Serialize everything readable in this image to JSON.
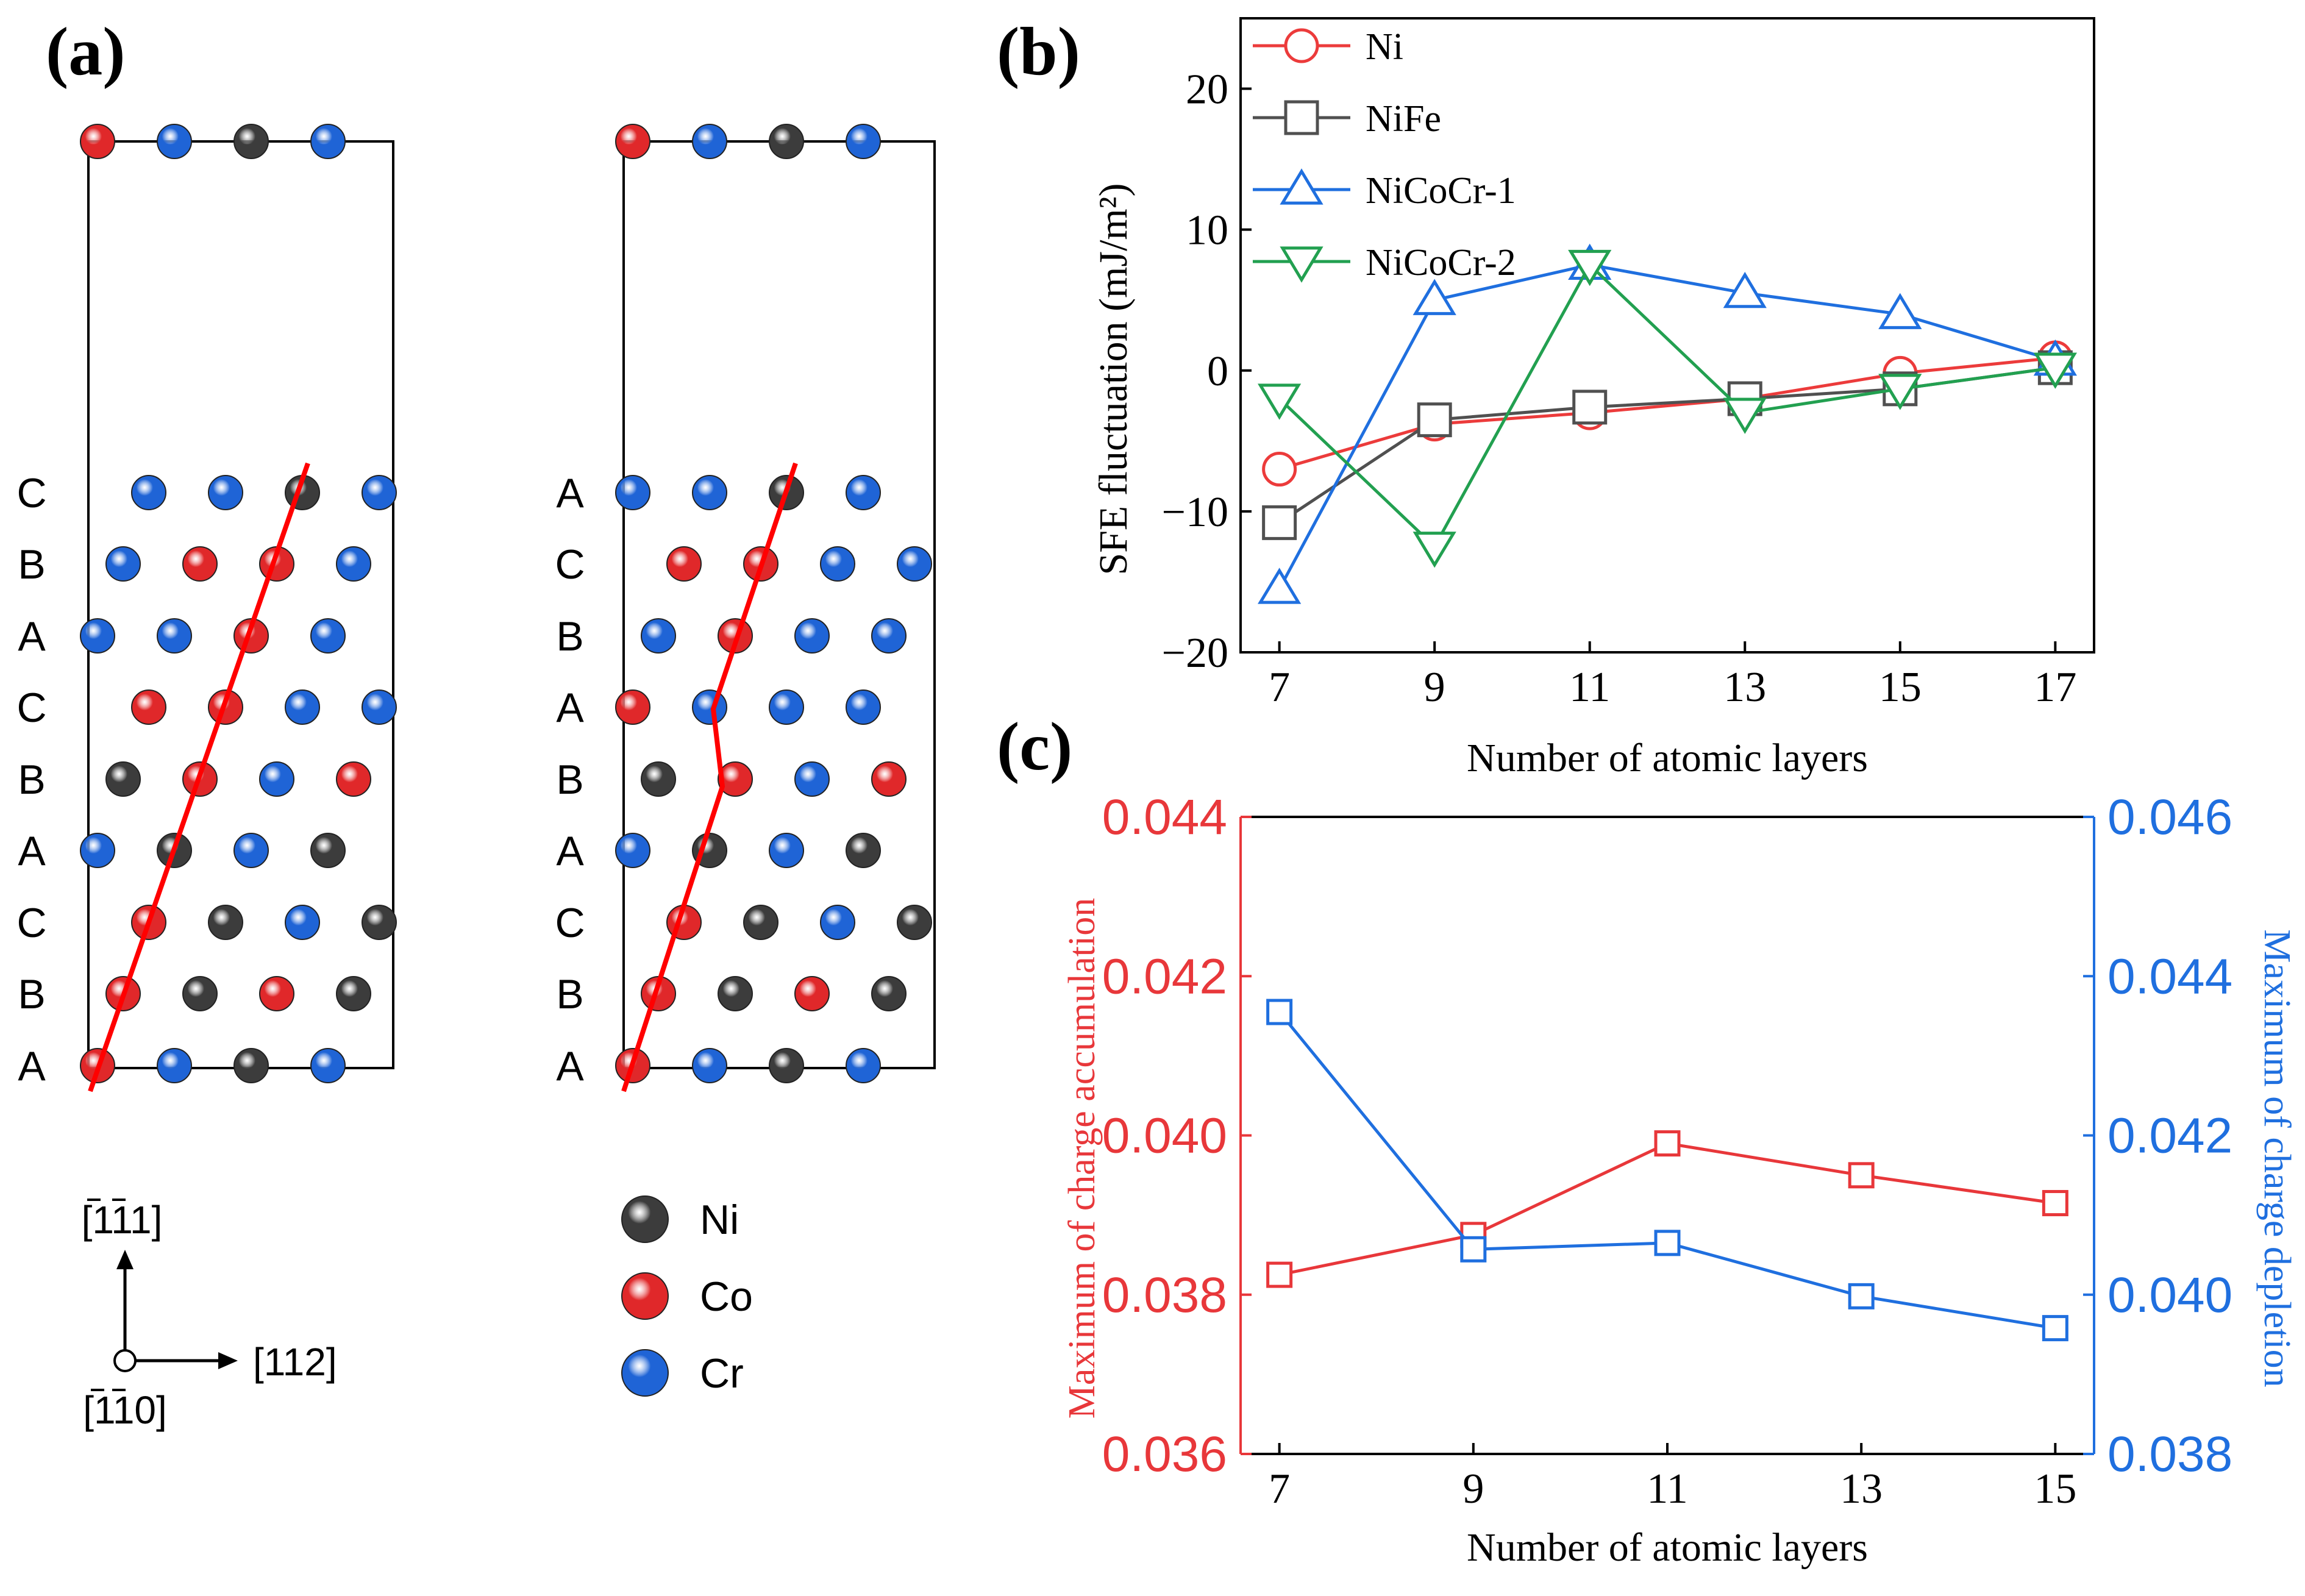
{
  "colors": {
    "Ni": "#3c3c3c",
    "Co": "#e0282a",
    "Cr": "#1f64d6",
    "red_line": "#ff0000",
    "series_Ni": "#ec3b3b",
    "series_NiFe": "#505050",
    "series_NiCoCr1": "#1f6fdf",
    "series_NiCoCr2": "#22a050",
    "axis_left_c": "#e8373a",
    "axis_right_c": "#1f6fdf"
  },
  "panel_a": {
    "label": "(a)",
    "left_layers": [
      "C",
      "B",
      "A",
      "C",
      "B",
      "A",
      "C",
      "B",
      "A"
    ],
    "right_layers": [
      "A",
      "C",
      "B",
      "A",
      "B",
      "A",
      "C",
      "B",
      "A"
    ],
    "left_top_row": [
      "Co",
      "Cr",
      "Ni",
      "Cr"
    ],
    "right_top_row": [
      "Co",
      "Cr",
      "Ni",
      "Cr"
    ],
    "left_rows": [
      [
        "Cr",
        "Cr",
        "Ni",
        "Cr"
      ],
      [
        "Cr",
        "Co",
        "Co",
        "Cr"
      ],
      [
        "Cr",
        "Cr",
        "Co",
        "Cr"
      ],
      [
        "Co",
        "Co",
        "Cr",
        "Cr"
      ],
      [
        "Ni",
        "Co",
        "Cr",
        "Co"
      ],
      [
        "Cr",
        "Ni",
        "Cr",
        "Ni"
      ],
      [
        "Co",
        "Ni",
        "Cr",
        "Ni"
      ],
      [
        "Co",
        "Ni",
        "Co",
        "Ni"
      ],
      [
        "Co",
        "Cr",
        "Ni",
        "Cr"
      ]
    ],
    "right_rows": [
      [
        "Cr",
        "Cr",
        "Ni",
        "Cr"
      ],
      [
        "Co",
        "Co",
        "Cr",
        "Cr"
      ],
      [
        "Cr",
        "Co",
        "Cr",
        "Cr"
      ],
      [
        "Co",
        "Cr",
        "Cr",
        "Cr"
      ],
      [
        "Ni",
        "Co",
        "Cr",
        "Co"
      ],
      [
        "Cr",
        "Ni",
        "Cr",
        "Ni"
      ],
      [
        "Co",
        "Ni",
        "Cr",
        "Ni"
      ],
      [
        "Co",
        "Ni",
        "Co",
        "Ni"
      ],
      [
        "Co",
        "Cr",
        "Ni",
        "Cr"
      ]
    ],
    "axes": {
      "vertical": "[111]",
      "horizontal": "[112]",
      "out_of_plane": "[110]"
    },
    "legend": [
      {
        "element": "Ni",
        "label": "Ni"
      },
      {
        "element": "Co",
        "label": "Co"
      },
      {
        "element": "Cr",
        "label": "Cr"
      }
    ]
  },
  "chart_data": [
    {
      "panel": "(b)",
      "type": "line",
      "xlabel": "Number of atomic layers",
      "ylabel": "SFE fluctuation (mJ/m²)",
      "x": [
        7,
        9,
        11,
        13,
        15,
        17
      ],
      "xlim": [
        6.5,
        17.5
      ],
      "ylim": [
        -20,
        25
      ],
      "xticks": [
        "7",
        "9",
        "11",
        "13",
        "15",
        "17"
      ],
      "yticks": [
        "−20",
        "−10",
        "0",
        "10",
        "20"
      ],
      "legend_position": "top-left",
      "series": [
        {
          "name": "Ni",
          "marker": "circle",
          "color_key": "series_Ni",
          "values": [
            -7.0,
            -3.8,
            -3.0,
            -2.0,
            -0.2,
            0.9
          ]
        },
        {
          "name": "NiFe",
          "marker": "square",
          "color_key": "series_NiFe",
          "values": [
            -10.8,
            -3.5,
            -2.6,
            -2.0,
            -1.3,
            0.2
          ]
        },
        {
          "name": "NiCoCr-1",
          "marker": "triangle-up",
          "color_key": "series_NiCoCr1",
          "values": [
            -15.5,
            5.0,
            7.5,
            5.5,
            4.0,
            0.7
          ]
        },
        {
          "name": "NiCoCr-2",
          "marker": "triangle-down",
          "color_key": "series_NiCoCr2",
          "values": [
            -2.0,
            -12.5,
            7.5,
            -3.0,
            -1.3,
            0.2
          ]
        }
      ]
    },
    {
      "panel": "(c)",
      "type": "line",
      "xlabel": "Number of atomic layers",
      "x": [
        7,
        9,
        11,
        13,
        15
      ],
      "xlim": [
        6.6,
        15.4
      ],
      "xticks": [
        "7",
        "9",
        "11",
        "13",
        "15"
      ],
      "left_axis": {
        "label": "Maximum of charge accumulation",
        "ylim": [
          0.036,
          0.044
        ],
        "ticks": [
          "0.036",
          "0.038",
          "0.040",
          "0.042",
          "0.044"
        ]
      },
      "right_axis": {
        "label": "Maximum of charge depletion",
        "ylim": [
          0.038,
          0.046
        ],
        "ticks": [
          "0.038",
          "0.040",
          "0.042",
          "0.044",
          "0.046"
        ]
      },
      "series": [
        {
          "axis": "left",
          "marker": "square",
          "color_key": "axis_left_c",
          "values": [
            0.03825,
            0.03875,
            0.0399,
            0.0395,
            0.03915
          ]
        },
        {
          "axis": "right",
          "marker": "square",
          "color_key": "axis_right_c",
          "values": [
            0.04355,
            0.04057,
            0.04065,
            0.03998,
            0.03958
          ]
        }
      ]
    }
  ]
}
